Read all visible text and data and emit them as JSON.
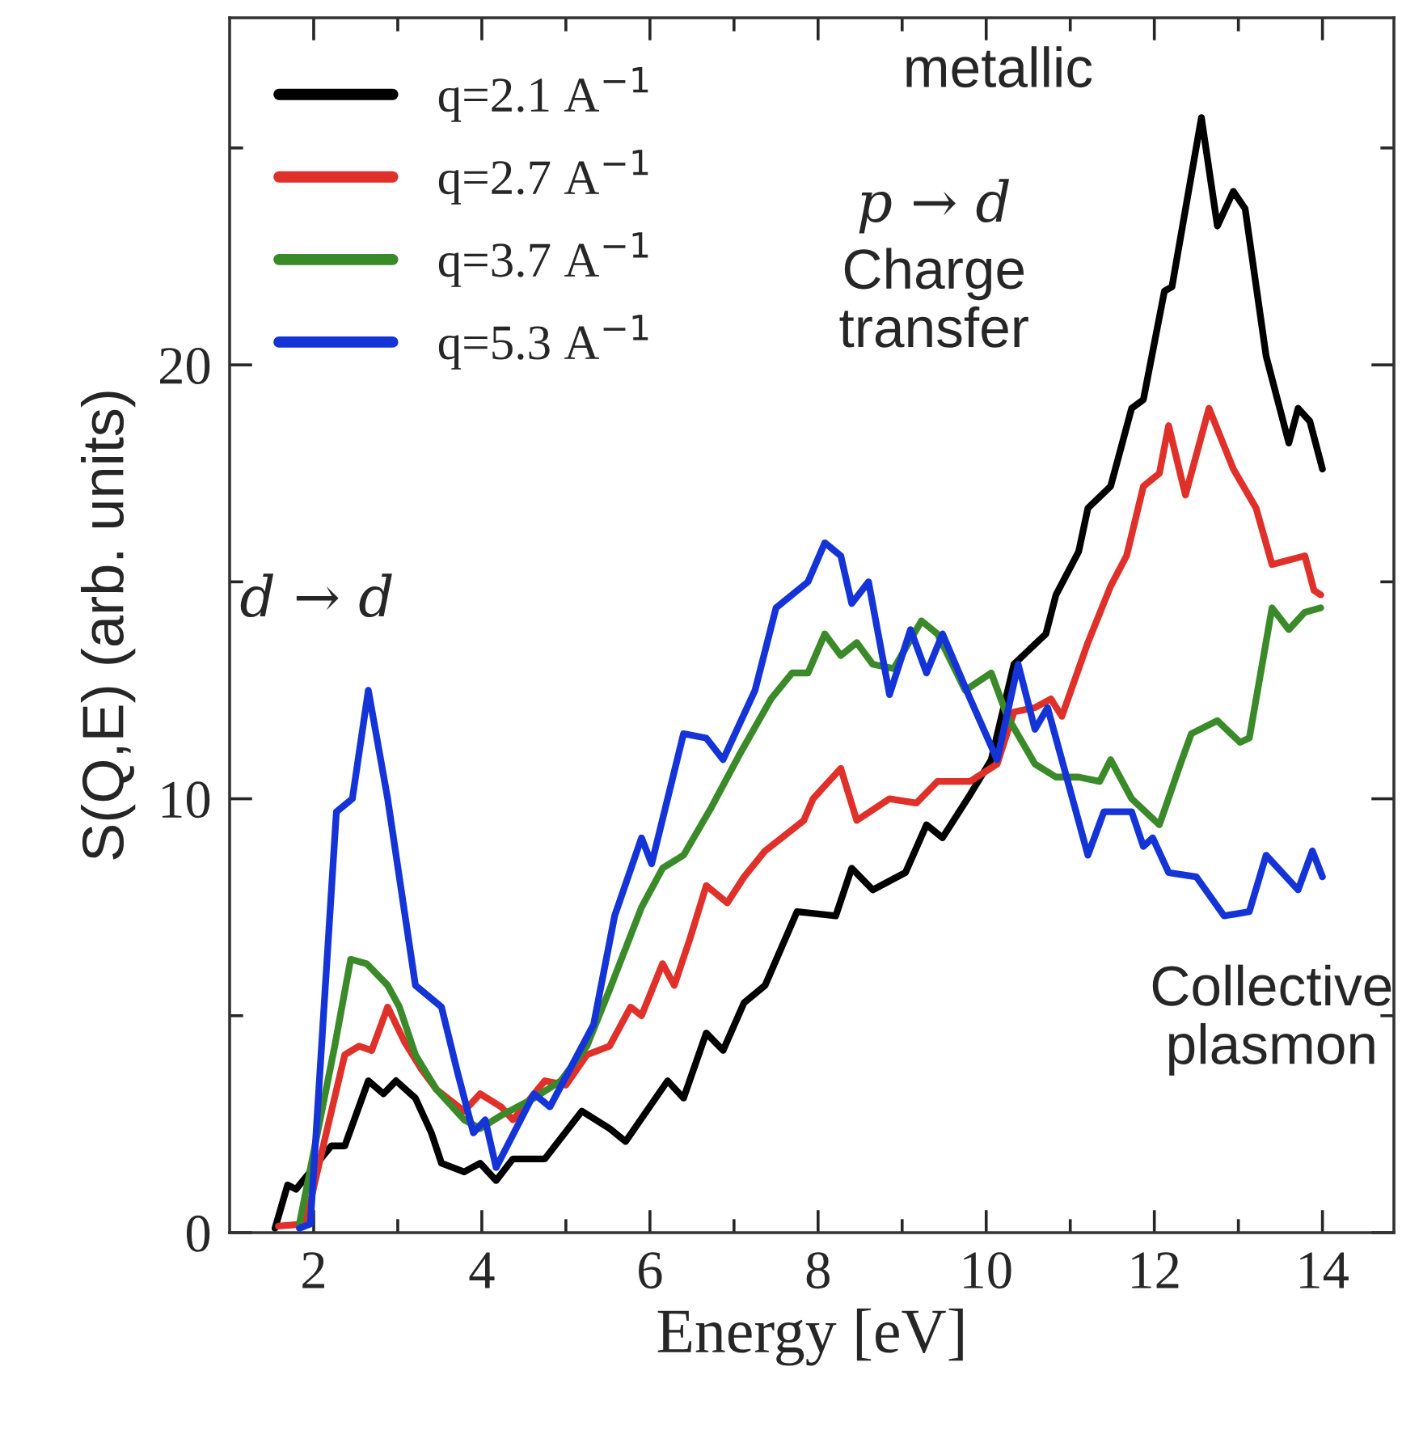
{
  "chart_data": {
    "type": "line",
    "xlabel": "Energy [eV]",
    "ylabel": "S(Q,E) (arb. units)",
    "xlim": [
      1,
      14.85
    ],
    "ylim": [
      0,
      28
    ],
    "xticks": [
      2,
      {
        "value": 3,
        "label": null
      },
      4,
      {
        "value": 5,
        "label": null
      },
      6,
      {
        "value": 7,
        "label": null
      },
      8,
      {
        "value": 9,
        "label": null
      },
      10,
      {
        "value": 11,
        "label": null
      },
      12,
      {
        "value": 13,
        "label": null
      },
      14
    ],
    "yticks": [
      0,
      {
        "value": 5,
        "label": null
      },
      10,
      {
        "value": 15,
        "label": null
      },
      20,
      {
        "value": 25,
        "label": null
      }
    ],
    "grid": false,
    "legend": "top left",
    "marker": "none",
    "line_style": "solid",
    "annotations": [
      "metallic",
      "p → d",
      "Charge\ntransfer",
      "d → d",
      "Collective\nplasmon"
    ],
    "series": [
      {
        "name": "q=2.1 A$^{−1}$",
        "color": "#000000",
        "x": [
          1.54,
          1.69,
          1.79,
          2.21,
          2.37,
          2.65,
          2.83,
          2.98,
          3.21,
          3.4,
          3.52,
          3.79,
          3.98,
          4.17,
          4.37,
          4.75,
          5.19,
          5.52,
          5.71,
          6.21,
          6.4,
          6.67,
          6.87,
          7.12,
          7.37,
          7.75,
          8.21,
          8.4,
          8.65,
          9.04,
          9.29,
          9.48,
          9.81,
          10.06,
          10.33,
          10.71,
          10.83,
          11.1,
          11.21,
          11.48,
          11.73,
          11.87,
          12.12,
          12.21,
          12.56,
          12.75,
          12.94,
          13.08,
          13.33,
          13.6,
          13.71,
          13.85,
          14.0
        ],
        "values": [
          0.1,
          1.1,
          1.0,
          2.0,
          2.0,
          3.5,
          3.2,
          3.5,
          3.1,
          2.3,
          1.6,
          1.4,
          1.6,
          1.2,
          1.7,
          1.7,
          2.8,
          2.4,
          2.1,
          3.5,
          3.1,
          4.6,
          4.2,
          5.3,
          5.7,
          7.4,
          7.3,
          8.4,
          7.9,
          8.3,
          9.4,
          9.1,
          10.1,
          10.9,
          13.1,
          13.8,
          14.7,
          15.7,
          16.7,
          17.2,
          19.0,
          19.2,
          21.7,
          21.8,
          25.7,
          23.2,
          24.0,
          23.6,
          20.2,
          18.2,
          19.0,
          18.7,
          17.6
        ]
      },
      {
        "name": "q=2.7 A$^{−1}$",
        "color": "#e0302a",
        "x": [
          1.58,
          1.9,
          2.15,
          2.37,
          2.54,
          2.69,
          2.88,
          3.08,
          3.27,
          3.46,
          3.79,
          3.98,
          4.23,
          4.37,
          4.75,
          5.0,
          5.25,
          5.52,
          5.77,
          5.9,
          6.15,
          6.29,
          6.48,
          6.67,
          6.92,
          7.12,
          7.37,
          7.83,
          7.94,
          8.27,
          8.46,
          8.85,
          9.17,
          9.42,
          9.81,
          10.13,
          10.33,
          10.58,
          10.77,
          10.9,
          11.21,
          11.48,
          11.67,
          11.87,
          12.06,
          12.17,
          12.37,
          12.65,
          12.94,
          13.21,
          13.4,
          13.6,
          13.79,
          13.9,
          13.98
        ],
        "values": [
          0.15,
          0.2,
          2.3,
          4.1,
          4.3,
          4.2,
          5.2,
          4.4,
          3.8,
          3.3,
          2.8,
          3.2,
          2.9,
          2.6,
          3.5,
          3.4,
          4.1,
          4.3,
          5.2,
          5.0,
          6.2,
          5.7,
          6.8,
          8.0,
          7.6,
          8.2,
          8.8,
          9.5,
          10.0,
          10.7,
          9.5,
          10.0,
          9.9,
          10.4,
          10.4,
          10.8,
          12.0,
          12.1,
          12.3,
          11.9,
          13.6,
          14.9,
          15.6,
          17.2,
          17.5,
          18.6,
          17.0,
          19.0,
          17.6,
          16.7,
          15.4,
          15.5,
          15.6,
          14.8,
          14.7
        ]
      },
      {
        "name": "q=3.7 A$^{−1}$",
        "color": "#3a8a2a",
        "x": [
          1.83,
          2.25,
          2.44,
          2.63,
          2.88,
          3.02,
          3.21,
          3.46,
          3.79,
          3.98,
          4.23,
          4.62,
          4.94,
          5.25,
          5.52,
          5.9,
          6.15,
          6.4,
          6.73,
          7.06,
          7.44,
          7.69,
          7.88,
          8.08,
          8.27,
          8.46,
          8.65,
          8.9,
          9.23,
          9.42,
          9.75,
          10.06,
          10.25,
          10.58,
          10.83,
          11.1,
          11.35,
          11.48,
          11.73,
          12.06,
          12.31,
          12.44,
          12.75,
          13.02,
          13.13,
          13.4,
          13.6,
          13.79,
          13.98
        ],
        "values": [
          0.2,
          4.3,
          6.3,
          6.2,
          5.7,
          5.2,
          4.1,
          3.3,
          2.6,
          2.4,
          2.7,
          3.1,
          3.5,
          4.3,
          5.6,
          7.5,
          8.4,
          8.7,
          9.8,
          11.0,
          12.3,
          12.9,
          12.9,
          13.8,
          13.3,
          13.6,
          13.1,
          13.0,
          14.1,
          13.8,
          12.5,
          12.9,
          11.9,
          10.8,
          10.5,
          10.5,
          10.4,
          10.9,
          10.0,
          9.4,
          10.8,
          11.5,
          11.8,
          11.3,
          11.4,
          14.4,
          13.9,
          14.3,
          14.4
        ]
      },
      {
        "name": "q=5.3 A$^{−1}$",
        "color": "#1434d8",
        "x": [
          1.83,
          1.96,
          2.27,
          2.46,
          2.65,
          2.88,
          3.21,
          3.52,
          3.71,
          3.9,
          4.04,
          4.17,
          4.62,
          4.81,
          5.33,
          5.58,
          5.9,
          6.02,
          6.4,
          6.67,
          6.87,
          7.25,
          7.5,
          7.88,
          8.08,
          8.27,
          8.4,
          8.6,
          8.85,
          9.1,
          9.29,
          9.48,
          9.81,
          10.13,
          10.38,
          10.58,
          10.73,
          11.21,
          11.4,
          11.73,
          11.87,
          11.98,
          12.17,
          12.5,
          12.83,
          13.13,
          13.33,
          13.71,
          13.88,
          14.0
        ],
        "values": [
          0.1,
          0.2,
          9.7,
          10.0,
          12.5,
          10.0,
          5.7,
          5.2,
          3.7,
          2.3,
          2.6,
          1.5,
          3.2,
          2.9,
          4.8,
          7.3,
          9.1,
          8.5,
          11.5,
          11.4,
          10.9,
          12.5,
          14.4,
          15.0,
          15.9,
          15.6,
          14.5,
          15.0,
          12.4,
          13.9,
          12.9,
          13.8,
          12.3,
          10.9,
          13.1,
          11.6,
          12.1,
          8.7,
          9.7,
          9.7,
          8.9,
          9.1,
          8.3,
          8.2,
          7.3,
          7.4,
          8.7,
          7.9,
          8.8,
          8.2
        ]
      }
    ]
  }
}
